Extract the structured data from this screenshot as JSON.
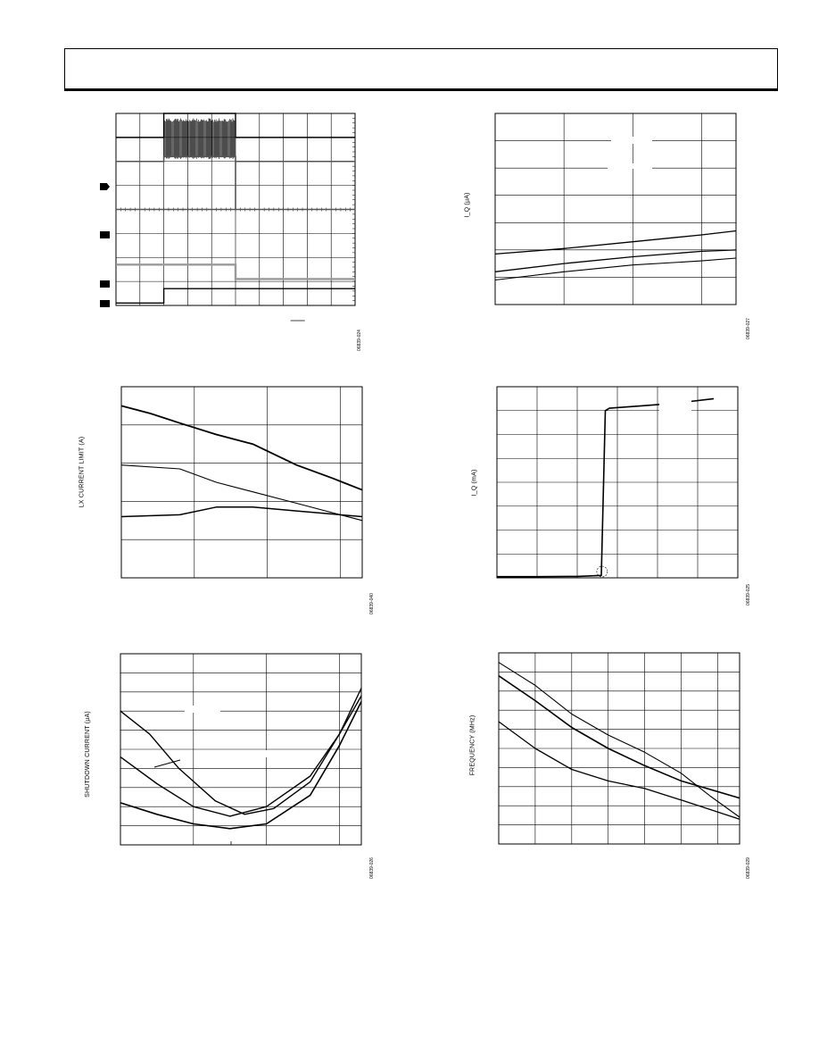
{
  "chart_data": [
    {
      "id": "scope",
      "type": "line",
      "title": "",
      "figure_id": "06839-024",
      "grid": true,
      "grid_divisions": {
        "x": 10,
        "y": 8
      },
      "channel_markers": [
        "1",
        "2",
        "3",
        "4"
      ],
      "colors": {
        "trace": "#000000",
        "trace_dark_gray": "#333333",
        "trace_gray": "#555555",
        "trace_light_gray": "#999999"
      },
      "series": [
        {
          "values": [
            [
              0,
              1.0
            ],
            [
              2,
              1.0
            ],
            [
              2,
              0.0
            ],
            [
              5,
              0.0
            ],
            [
              5,
              1.0
            ],
            [
              10,
              1.0
            ]
          ],
          "style": "noise_burst"
        },
        {
          "values": [
            [
              0,
              2.0
            ],
            [
              2,
              2.0
            ],
            [
              2,
              1.8
            ],
            [
              5,
              1.8
            ],
            [
              5,
              2.0
            ],
            [
              10,
              2.0
            ]
          ],
          "style": "gray"
        },
        {
          "values": [
            [
              0,
              4.0
            ],
            [
              5,
              4.0
            ],
            [
              5,
              2.0
            ],
            [
              5,
              4.0
            ],
            [
              10,
              4.0
            ]
          ],
          "style": "gray"
        },
        {
          "values": [
            [
              0,
              6.3
            ],
            [
              5,
              6.3
            ],
            [
              5,
              6.9
            ],
            [
              10,
              6.9
            ]
          ],
          "style": "light_gray"
        },
        {
          "values": [
            [
              0,
              7.9
            ],
            [
              2,
              7.9
            ],
            [
              2,
              7.3
            ],
            [
              10,
              7.3
            ]
          ],
          "style": "black"
        }
      ]
    },
    {
      "id": "iq-vs-temp",
      "type": "line",
      "ylabel": "I_Q (μA)",
      "figure_id": "06839-027",
      "grid_divisions": {
        "x": 3.5,
        "y": 7
      },
      "series": [
        {
          "values": [
            [
              0,
              1.85
            ],
            [
              1,
              2.05
            ],
            [
              2,
              2.3
            ],
            [
              3,
              2.55
            ],
            [
              3.5,
              2.7
            ]
          ]
        },
        {
          "values": [
            [
              0,
              1.2
            ],
            [
              1,
              1.5
            ],
            [
              2,
              1.75
            ],
            [
              3,
              1.95
            ],
            [
              3.5,
              2.0
            ]
          ]
        },
        {
          "values": [
            [
              0,
              0.9
            ],
            [
              1,
              1.2
            ],
            [
              2,
              1.45
            ],
            [
              3,
              1.6
            ],
            [
              3.5,
              1.7
            ]
          ]
        }
      ]
    },
    {
      "id": "lx-limit",
      "type": "line",
      "ylabel": "LX CURRENT LIMIT (A)",
      "figure_id": "06839-040",
      "grid_divisions": {
        "x": 3.3,
        "y": 5
      },
      "series": [
        {
          "values": [
            [
              0,
              4.5
            ],
            [
              0.4,
              4.3
            ],
            [
              0.8,
              4.05
            ],
            [
              1.3,
              3.75
            ],
            [
              1.8,
              3.5
            ],
            [
              2.4,
              2.95
            ],
            [
              2.9,
              2.6
            ],
            [
              3.3,
              2.3
            ]
          ]
        },
        {
          "values": [
            [
              0,
              2.95
            ],
            [
              0.8,
              2.85
            ],
            [
              1.3,
              2.5
            ],
            [
              1.8,
              2.25
            ],
            [
              2.4,
              1.95
            ],
            [
              3.3,
              1.5
            ]
          ]
        },
        {
          "values": [
            [
              0,
              1.6
            ],
            [
              0.8,
              1.65
            ],
            [
              1.3,
              1.85
            ],
            [
              1.8,
              1.85
            ],
            [
              2.4,
              1.75
            ],
            [
              3.3,
              1.6
            ]
          ]
        }
      ]
    },
    {
      "id": "iq-ma",
      "type": "line",
      "ylabel": "I_Q (mA)",
      "figure_id": "06839-025",
      "grid_divisions": {
        "x": 6,
        "y": 8
      },
      "series": [
        {
          "values": [
            [
              0,
              0.05
            ],
            [
              1,
              0.05
            ],
            [
              2,
              0.06
            ],
            [
              2.6,
              0.1
            ],
            [
              2.7,
              7.0
            ],
            [
              2.8,
              7.1
            ],
            [
              3.6,
              7.2
            ],
            [
              4.4,
              7.3
            ],
            [
              5.4,
              7.5
            ]
          ]
        }
      ]
    },
    {
      "id": "shutdown",
      "type": "line",
      "ylabel": "SHUTDOWN CURRENT (μA)",
      "figure_id": "06839-026",
      "grid_divisions": {
        "x": 3.3,
        "y": 10
      },
      "series": [
        {
          "values": [
            [
              0,
              7.0
            ],
            [
              0.4,
              5.8
            ],
            [
              0.8,
              4.0
            ],
            [
              1.3,
              2.3
            ],
            [
              1.7,
              1.6
            ],
            [
              2.1,
              1.9
            ],
            [
              2.6,
              3.3
            ],
            [
              3.0,
              5.8
            ],
            [
              3.3,
              8.2
            ]
          ]
        },
        {
          "values": [
            [
              0,
              4.6
            ],
            [
              0.5,
              3.2
            ],
            [
              1.0,
              2.0
            ],
            [
              1.5,
              1.5
            ],
            [
              2.0,
              2.0
            ],
            [
              2.6,
              3.6
            ],
            [
              3.0,
              5.8
            ],
            [
              3.3,
              7.8
            ]
          ]
        },
        {
          "values": [
            [
              0,
              2.2
            ],
            [
              0.5,
              1.6
            ],
            [
              1.0,
              1.1
            ],
            [
              1.5,
              0.85
            ],
            [
              2.0,
              1.1
            ],
            [
              2.6,
              2.6
            ],
            [
              3.0,
              5.2
            ],
            [
              3.3,
              7.5
            ]
          ]
        }
      ]
    },
    {
      "id": "frequency",
      "type": "line",
      "ylabel": "FREQUENCY (MHz)",
      "figure_id": "06839-029",
      "grid_divisions": {
        "x": 6.6,
        "y": 10
      },
      "series": [
        {
          "values": [
            [
              0,
              9.5
            ],
            [
              1,
              8.3
            ],
            [
              2,
              6.8
            ],
            [
              3,
              5.7
            ],
            [
              4,
              4.8
            ],
            [
              5,
              3.7
            ],
            [
              5.8,
              2.5
            ],
            [
              6.6,
              1.4
            ]
          ]
        },
        {
          "values": [
            [
              0,
              8.8
            ],
            [
              1,
              7.5
            ],
            [
              2,
              6.1
            ],
            [
              3,
              5.0
            ],
            [
              4,
              4.1
            ],
            [
              5,
              3.3
            ],
            [
              6.6,
              2.4
            ]
          ]
        },
        {
          "values": [
            [
              0,
              6.4
            ],
            [
              1,
              5.0
            ],
            [
              2,
              3.9
            ],
            [
              3,
              3.3
            ],
            [
              4,
              2.9
            ],
            [
              5,
              2.3
            ],
            [
              6.6,
              1.3
            ]
          ]
        }
      ]
    }
  ]
}
